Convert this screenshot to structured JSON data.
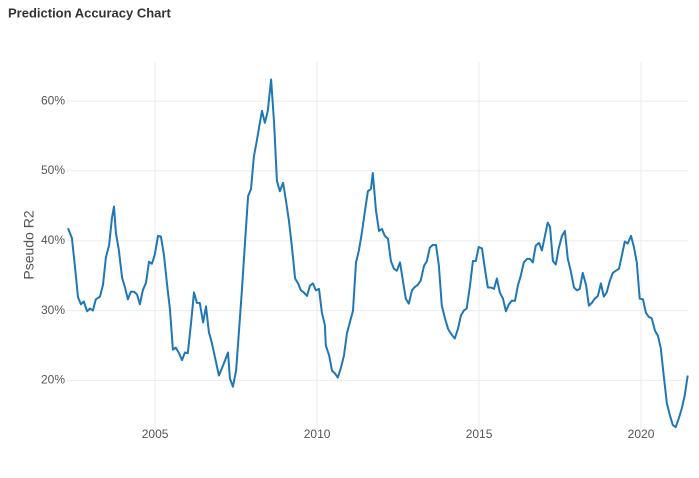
{
  "chart_data": {
    "type": "line",
    "title": "Prediction Accuracy Chart",
    "y_label": "Pseudo R2",
    "x": [
      2002.31,
      2002.43,
      2002.53,
      2002.62,
      2002.71,
      2002.8,
      2002.9,
      2002.99,
      2003.08,
      2003.17,
      2003.3,
      2003.39,
      2003.48,
      2003.58,
      2003.67,
      2003.73,
      2003.79,
      2003.88,
      2003.98,
      2004.07,
      2004.16,
      2004.25,
      2004.35,
      2004.44,
      2004.53,
      2004.62,
      2004.72,
      2004.81,
      2004.9,
      2004.99,
      2005.09,
      2005.18,
      2005.27,
      2005.37,
      2005.46,
      2005.55,
      2005.64,
      2005.74,
      2005.83,
      2005.92,
      2006.01,
      2006.11,
      2006.2,
      2006.29,
      2006.38,
      2006.48,
      2006.57,
      2006.66,
      2006.75,
      2006.85,
      2006.97,
      2007.06,
      2007.16,
      2007.25,
      2007.31,
      2007.4,
      2007.5,
      2007.59,
      2007.68,
      2007.77,
      2007.87,
      2007.96,
      2008.05,
      2008.14,
      2008.24,
      2008.3,
      2008.39,
      2008.48,
      2008.58,
      2008.67,
      2008.76,
      2008.85,
      2008.95,
      2009.04,
      2009.13,
      2009.22,
      2009.32,
      2009.41,
      2009.5,
      2009.59,
      2009.69,
      2009.78,
      2009.87,
      2009.96,
      2010.06,
      2010.15,
      2010.24,
      2010.27,
      2010.37,
      2010.46,
      2010.55,
      2010.64,
      2010.74,
      2010.83,
      2010.92,
      2011.01,
      2011.11,
      2011.2,
      2011.29,
      2011.38,
      2011.48,
      2011.57,
      2011.66,
      2011.72,
      2011.82,
      2011.91,
      2012.0,
      2012.09,
      2012.19,
      2012.28,
      2012.37,
      2012.46,
      2012.56,
      2012.65,
      2012.74,
      2012.83,
      2012.93,
      2013.02,
      2013.11,
      2013.2,
      2013.3,
      2013.39,
      2013.48,
      2013.57,
      2013.67,
      2013.76,
      2013.85,
      2013.95,
      2014.04,
      2014.13,
      2014.25,
      2014.35,
      2014.44,
      2014.53,
      2014.62,
      2014.72,
      2014.81,
      2014.9,
      2014.99,
      2015.09,
      2015.18,
      2015.27,
      2015.37,
      2015.46,
      2015.55,
      2015.64,
      2015.74,
      2015.83,
      2015.92,
      2016.01,
      2016.11,
      2016.2,
      2016.29,
      2016.38,
      2016.48,
      2016.57,
      2016.66,
      2016.75,
      2016.85,
      2016.94,
      2017.03,
      2017.12,
      2017.19,
      2017.28,
      2017.37,
      2017.46,
      2017.56,
      2017.65,
      2017.74,
      2017.83,
      2017.93,
      2018.02,
      2018.11,
      2018.2,
      2018.3,
      2018.39,
      2018.48,
      2018.57,
      2018.67,
      2018.76,
      2018.85,
      2018.94,
      2019.04,
      2019.13,
      2019.22,
      2019.32,
      2019.41,
      2019.5,
      2019.59,
      2019.69,
      2019.78,
      2019.87,
      2019.96,
      2020.06,
      2020.15,
      2020.24,
      2020.33,
      2020.43,
      2020.52,
      2020.61,
      2020.7,
      2020.8,
      2020.89,
      2020.98,
      2021.07,
      2021.17,
      2021.26,
      2021.35,
      2021.44
    ],
    "series": [
      {
        "color": "#1f77b4",
        "values": [
          41.8,
          40.4,
          36.1,
          31.9,
          30.9,
          31.3,
          29.9,
          30.3,
          30,
          31.6,
          32,
          33.7,
          37.6,
          39.4,
          43.3,
          44.9,
          41.1,
          38.7,
          34.7,
          33.3,
          31.6,
          32.7,
          32.7,
          32.3,
          30.9,
          32.9,
          34,
          37,
          36.7,
          38,
          40.7,
          40.6,
          38,
          33.7,
          30.1,
          24.4,
          24.7,
          23.9,
          22.9,
          24,
          23.9,
          28.3,
          32.6,
          31.1,
          31.1,
          28.3,
          30.6,
          26.9,
          25.4,
          23.3,
          20.7,
          21.7,
          22.9,
          24,
          20.3,
          19.1,
          21.4,
          27.1,
          32.9,
          39.3,
          46.4,
          47.4,
          52.1,
          54.3,
          57.1,
          58.6,
          56.9,
          58.6,
          63.1,
          57.1,
          48.6,
          47.1,
          48.3,
          45.7,
          42.9,
          39.3,
          34.6,
          33.9,
          32.9,
          32.6,
          32.1,
          33.6,
          33.9,
          32.9,
          33.1,
          29.7,
          27.9,
          25,
          23.6,
          21.4,
          21,
          20.4,
          21.9,
          23.6,
          26.7,
          28.3,
          30,
          36.9,
          38.6,
          41.1,
          44.3,
          47.1,
          47.4,
          49.7,
          44.3,
          41.4,
          41.7,
          40.7,
          40.3,
          37.1,
          36,
          35.7,
          36.9,
          34.3,
          31.7,
          31,
          32.9,
          33.4,
          33.7,
          34.3,
          36.4,
          37.1,
          39,
          39.4,
          39.4,
          36.4,
          30.7,
          28.9,
          27.4,
          26.7,
          26,
          27.4,
          29.3,
          30,
          30.3,
          33.6,
          37.1,
          37.1,
          39.1,
          38.9,
          36,
          33.3,
          33.3,
          33.1,
          34.6,
          32.6,
          31.7,
          29.9,
          30.9,
          31.4,
          31.4,
          33.6,
          35,
          36.9,
          37.4,
          37.4,
          36.9,
          39.3,
          39.7,
          38.6,
          40.6,
          42.6,
          42,
          37.1,
          36.6,
          38.9,
          40.7,
          41.4,
          37.4,
          35.7,
          33.3,
          32.9,
          33.1,
          35.4,
          33.7,
          30.7,
          31.1,
          31.7,
          32.1,
          33.9,
          32,
          32.6,
          34.3,
          35.4,
          35.7,
          36,
          37.9,
          39.9,
          39.6,
          40.7,
          39.1,
          36.9,
          31.7,
          31.6,
          29.7,
          29.1,
          28.9,
          27.1,
          26.4,
          24.6,
          20.7,
          16.7,
          15,
          13.6,
          13.3,
          14.6,
          16,
          17.9,
          20.7
        ]
      }
    ],
    "xlim": [
      2002.28,
      2021.45
    ],
    "xticks": [
      2005,
      2010,
      2015,
      2020
    ],
    "ylim": [
      12.9,
      65.6
    ],
    "yticks": [
      {
        "value": 20,
        "label": "20%"
      },
      {
        "value": 30,
        "label": "30%"
      },
      {
        "value": 40,
        "label": "40%"
      },
      {
        "value": 50,
        "label": "50%"
      },
      {
        "value": 60,
        "label": "60%"
      }
    ],
    "grid": true
  }
}
